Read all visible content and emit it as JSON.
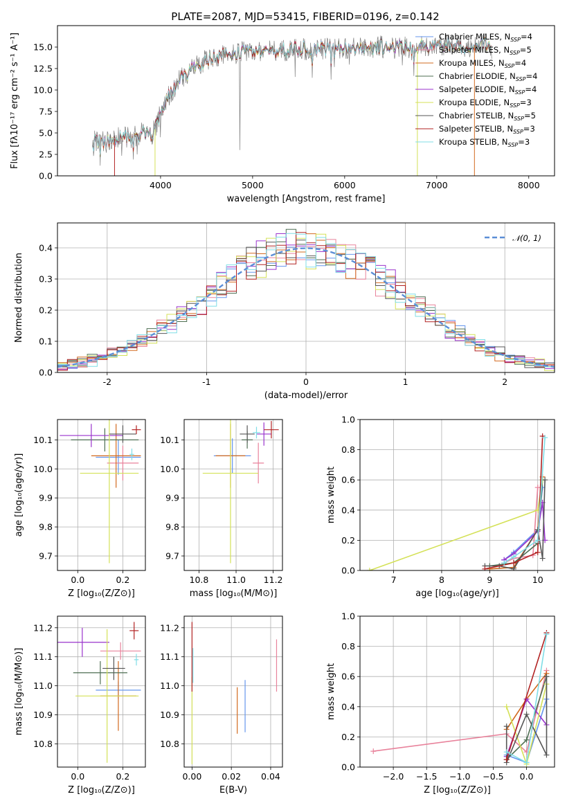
{
  "page": {
    "title": "PLATE=2087, MJD=53415, FIBERID=0196, z=0.142"
  },
  "models": [
    {
      "name": "Chabrier MILES",
      "nssp": "4",
      "color": "#6495ed"
    },
    {
      "name": "Salpeter MILES",
      "nssp": "5",
      "color": "#e8829b"
    },
    {
      "name": "Kroupa MILES",
      "nssp": "4",
      "color": "#d2691e"
    },
    {
      "name": "Chabrier ELODIE",
      "nssp": "4",
      "color": "#4d6e52"
    },
    {
      "name": "Salpeter ELODIE",
      "nssp": "4",
      "color": "#9932cc"
    },
    {
      "name": "Kroupa ELODIE",
      "nssp": "3",
      "color": "#d4e157"
    },
    {
      "name": "Chabrier STELIB",
      "nssp": "5",
      "color": "#555555"
    },
    {
      "name": "Salpeter STELIB",
      "nssp": "3",
      "color": "#b22222"
    },
    {
      "name": "Kroupa STELIB",
      "nssp": "3",
      "color": "#7fdde6"
    }
  ],
  "chart_data": [
    {
      "id": "spectrum",
      "type": "line",
      "title": "PLATE=2087, MJD=53415, FIBERID=0196, z=0.142",
      "xlabel": "wavelength [Angstrom, rest frame]",
      "ylabel": "Flux [fλ10⁻¹⁷ erg cm⁻² s⁻¹ A⁻¹]",
      "xlim": [
        2880,
        8280
      ],
      "ylim": [
        0,
        17.5
      ],
      "xticks": [
        4000,
        5000,
        6000,
        7000,
        8000
      ],
      "yticks": [
        "0.0",
        "2.5",
        "5.0",
        "7.5",
        "10.0",
        "12.5",
        "15.0"
      ],
      "legend_position": "upper right",
      "continuum": {
        "x": [
          3260,
          3400,
          3500,
          3600,
          3700,
          3800,
          3900,
          3950,
          4000,
          4100,
          4200,
          4300,
          4400,
          4500,
          4700,
          4900,
          5100,
          5300,
          5500,
          5700,
          5900,
          6100,
          6300,
          6500,
          6700,
          6900,
          7100,
          7300,
          7500,
          7600
        ],
        "y": [
          4.0,
          3.9,
          4.3,
          4.6,
          4.4,
          5.0,
          4.8,
          5.6,
          7.5,
          9.5,
          11.0,
          12.0,
          12.8,
          13.5,
          14.2,
          14.4,
          14.6,
          14.6,
          14.8,
          14.7,
          15.0,
          14.8,
          15.0,
          15.1,
          15.0,
          15.1,
          15.3,
          15.0,
          15.4,
          15.2
        ]
      }
    },
    {
      "id": "residuals",
      "type": "line",
      "xlabel": "(data-model)/error",
      "ylabel": "Normed distribution",
      "xlim": [
        -2.5,
        2.5
      ],
      "ylim": [
        0,
        0.48
      ],
      "xticks": [
        -2,
        -1,
        0,
        1,
        2
      ],
      "yticks": [
        "0.0",
        "0.1",
        "0.2",
        "0.3",
        "0.4"
      ],
      "legend": "𝒩(0, 1)",
      "legend_position": "upper right",
      "bin_width": 0.1,
      "grid": true
    },
    {
      "id": "age-vs-Z",
      "type": "scatter",
      "xlabel": "Z [log₁₀(Z/Z⊙)]",
      "ylabel": "age  [log₁₀(age/yr)]",
      "xlim": [
        -0.09,
        0.3
      ],
      "ylim": [
        9.65,
        10.17
      ],
      "xticks": [
        "0.0",
        "0.2"
      ],
      "yticks": [
        "9.7",
        "9.8",
        "9.9",
        "10.0",
        "10.1"
      ],
      "grid": true,
      "points": [
        {
          "x": 0.18,
          "xerr": 0.1,
          "y": 10.04,
          "yerr": 0.06,
          "color": "#6495ed"
        },
        {
          "x": 0.2,
          "xerr": 0.07,
          "y": 10.02,
          "yerr": 0.06,
          "color": "#e8829b"
        },
        {
          "x": 0.17,
          "xerr": 0.11,
          "y": 10.045,
          "yerr": 0.11,
          "color": "#d2691e"
        },
        {
          "x": 0.12,
          "xerr": 0.15,
          "y": 10.1,
          "yerr": 0.04,
          "color": "#4d6e52"
        },
        {
          "x": 0.06,
          "xerr": 0.14,
          "y": 10.115,
          "yerr": 0.04,
          "color": "#9932cc"
        },
        {
          "x": 0.14,
          "xerr": 0.13,
          "y": 9.985,
          "yerr": 0.31,
          "color": "#d4e157"
        },
        {
          "x": 0.2,
          "xerr": 0.06,
          "y": 10.12,
          "yerr": 0.03,
          "color": "#555555"
        },
        {
          "x": 0.26,
          "xerr": 0.02,
          "y": 10.135,
          "yerr": 0.015,
          "color": "#b22222"
        },
        {
          "x": 0.24,
          "xerr": 0.01,
          "y": 10.05,
          "yerr": 0.02,
          "color": "#7fdde6"
        }
      ]
    },
    {
      "id": "age-vs-mass",
      "type": "scatter",
      "xlabel": "mass [log₁₀(M/M⊙)]",
      "ylim": [
        9.65,
        10.17
      ],
      "xlim": [
        10.72,
        11.25
      ],
      "xticks": [
        "10.8",
        "11.0",
        "11.2"
      ],
      "yticks": [
        "9.7",
        "9.8",
        "9.9",
        "10.0",
        "10.1"
      ],
      "grid": true,
      "points": [
        {
          "x": 10.98,
          "xerr": 0.1,
          "y": 10.045,
          "yerr": 0.06,
          "color": "#6495ed"
        },
        {
          "x": 11.12,
          "xerr": 0.03,
          "y": 10.02,
          "yerr": 0.07,
          "color": "#e8829b"
        },
        {
          "x": 10.97,
          "xerr": 0.08,
          "y": 10.045,
          "yerr": 0.11,
          "color": "#d2691e"
        },
        {
          "x": 11.06,
          "xerr": 0.03,
          "y": 10.1,
          "yerr": 0.03,
          "color": "#4d6e52"
        },
        {
          "x": 11.15,
          "xerr": 0.04,
          "y": 10.12,
          "yerr": 0.04,
          "color": "#9932cc"
        },
        {
          "x": 10.97,
          "xerr": 0.15,
          "y": 9.985,
          "yerr": 0.31,
          "color": "#d4e157"
        },
        {
          "x": 11.06,
          "xerr": 0.04,
          "y": 10.12,
          "yerr": 0.03,
          "color": "#555555"
        },
        {
          "x": 11.19,
          "xerr": 0.04,
          "y": 10.135,
          "yerr": 0.03,
          "color": "#b22222"
        },
        {
          "x": 11.11,
          "xerr": 0.02,
          "y": 10.125,
          "yerr": 0.02,
          "color": "#7fdde6"
        }
      ]
    },
    {
      "id": "weight-vs-age",
      "type": "line",
      "xlabel": "age  [log₁₀(age/yr)]",
      "ylabel": "mass weight",
      "xlim": [
        6.3,
        10.35
      ],
      "ylim": [
        0,
        1
      ],
      "xticks": [
        "7",
        "8",
        "9",
        "10"
      ],
      "yticks": [
        "0.0",
        "0.2",
        "0.4",
        "0.6",
        "0.8",
        "1.0"
      ],
      "grid": true,
      "series": [
        {
          "color": "#6495ed",
          "x": [
            9.3,
            9.5,
            10.0,
            10.1
          ],
          "y": [
            0.07,
            0.12,
            0.27,
            0.55
          ]
        },
        {
          "color": "#e8829b",
          "x": [
            9.3,
            9.5,
            9.9,
            10.0
          ],
          "y": [
            0.05,
            0.08,
            0.1,
            0.55
          ]
        },
        {
          "color": "#d2691e",
          "x": [
            9.0,
            9.5,
            10.0,
            10.1
          ],
          "y": [
            0.01,
            0.02,
            0.27,
            0.62
          ]
        },
        {
          "color": "#4d6e52",
          "x": [
            9.0,
            9.5,
            10.0,
            10.1
          ],
          "y": [
            0.03,
            0.05,
            0.18,
            0.6
          ]
        },
        {
          "color": "#9932cc",
          "x": [
            9.3,
            9.5,
            10.0,
            10.1,
            10.15
          ],
          "y": [
            0.07,
            0.11,
            0.26,
            0.45,
            0.2
          ]
        },
        {
          "color": "#d4e157",
          "x": [
            6.5,
            10.0,
            10.1
          ],
          "y": [
            0.0,
            0.4,
            0.6
          ]
        },
        {
          "color": "#555555",
          "x": [
            8.9,
            9.2,
            9.5,
            10.0,
            10.1,
            10.15
          ],
          "y": [
            0.03,
            0.03,
            0.01,
            0.27,
            0.08,
            0.6
          ]
        },
        {
          "color": "#b22222",
          "x": [
            8.9,
            9.5,
            10.0,
            10.1
          ],
          "y": [
            0.01,
            0.05,
            0.12,
            0.89
          ]
        },
        {
          "color": "#7fdde6",
          "x": [
            9.3,
            9.5,
            10.0,
            10.15
          ],
          "y": [
            0.05,
            0.09,
            0.2,
            0.88
          ]
        }
      ]
    },
    {
      "id": "mass-vs-Z",
      "type": "scatter",
      "xlabel": "Z [log₁₀(Z/Z⊙)]",
      "ylabel": "mass [log₁₀(M/M⊙)]",
      "xlim": [
        -0.09,
        0.3
      ],
      "ylim": [
        10.72,
        11.24
      ],
      "xticks": [
        "0.0",
        "0.2"
      ],
      "yticks": [
        "10.8",
        "10.9",
        "11.0",
        "11.1",
        "11.2"
      ],
      "grid": true,
      "points": [
        {
          "x": 0.18,
          "xerr": 0.1,
          "y": 10.985,
          "yerr": 0.03,
          "color": "#6495ed"
        },
        {
          "x": 0.19,
          "xerr": 0.09,
          "y": 11.12,
          "yerr": 0.03,
          "color": "#e8829b"
        },
        {
          "x": 0.18,
          "xerr": 0.08,
          "y": 10.965,
          "yerr": 0.12,
          "color": "#d2691e"
        },
        {
          "x": 0.1,
          "xerr": 0.12,
          "y": 11.045,
          "yerr": 0.04,
          "color": "#4d6e52"
        },
        {
          "x": 0.02,
          "xerr": 0.12,
          "y": 11.15,
          "yerr": 0.05,
          "color": "#9932cc"
        },
        {
          "x": 0.13,
          "xerr": 0.14,
          "y": 10.965,
          "yerr": 0.23,
          "color": "#d4e157"
        },
        {
          "x": 0.16,
          "xerr": 0.05,
          "y": 11.06,
          "yerr": 0.04,
          "color": "#555555"
        },
        {
          "x": 0.25,
          "xerr": 0.02,
          "y": 11.19,
          "yerr": 0.03,
          "color": "#b22222"
        },
        {
          "x": 0.26,
          "xerr": 0.01,
          "y": 11.09,
          "yerr": 0.02,
          "color": "#7fdde6"
        }
      ]
    },
    {
      "id": "mass-vs-ebv",
      "type": "scatter",
      "xlabel": "E(B-V)",
      "xlim": [
        -0.004,
        0.046
      ],
      "ylim": [
        10.72,
        11.24
      ],
      "xticks": [
        "0.00",
        "0.02",
        "0.04"
      ],
      "yticks": [
        "10.8",
        "10.9",
        "11.0",
        "11.1",
        "11.2"
      ],
      "grid": true,
      "points": [
        {
          "x": 0.027,
          "y": 10.93,
          "yerr": 0.09,
          "color": "#6495ed"
        },
        {
          "x": 0.043,
          "y": 11.07,
          "yerr": 0.09,
          "color": "#e8829b"
        },
        {
          "x": 0.023,
          "y": 10.915,
          "yerr": 0.08,
          "color": "#d2691e"
        },
        {
          "x": 0.0,
          "y": 10.88,
          "yerr": 0.15,
          "color": "#d4e157"
        },
        {
          "x": 0.0,
          "y": 11.1,
          "yerr": 0.12,
          "color": "#b22222"
        },
        {
          "x": 0.0005,
          "y": 11.07,
          "yerr": 0.06,
          "color": "#7fdde6"
        }
      ]
    },
    {
      "id": "weight-vs-Z",
      "type": "line",
      "xlabel": "Z [log₁₀(Z/Z⊙)]",
      "ylabel": "mass weight",
      "xlim": [
        -2.5,
        0.42
      ],
      "ylim": [
        0,
        1
      ],
      "xticks": [
        "−2.0",
        "−1.5",
        "−1.0",
        "−0.5",
        "0.0"
      ],
      "yticks": [
        "0.0",
        "0.2",
        "0.4",
        "0.6",
        "0.8",
        "1.0"
      ],
      "grid": true,
      "series": [
        {
          "color": "#e8829b",
          "x": [
            -2.3,
            -0.3,
            0.0,
            0.3
          ],
          "y": [
            0.105,
            0.22,
            0.1,
            0.64
          ]
        },
        {
          "color": "#6495ed",
          "x": [
            -0.3,
            0.0,
            0.3
          ],
          "y": [
            0.08,
            0.03,
            0.45
          ]
        },
        {
          "color": "#d2691e",
          "x": [
            -0.3,
            0.0,
            0.3
          ],
          "y": [
            0.25,
            0.45,
            0.62
          ]
        },
        {
          "color": "#4d6e52",
          "x": [
            -0.3,
            0.0,
            0.3
          ],
          "y": [
            0.05,
            0.18,
            0.6
          ]
        },
        {
          "color": "#9932cc",
          "x": [
            -0.3,
            0.0,
            0.3
          ],
          "y": [
            0.07,
            0.45,
            0.28
          ]
        },
        {
          "color": "#d4e157",
          "x": [
            -0.3,
            0.0,
            0.3
          ],
          "y": [
            0.4,
            0.02,
            0.55
          ]
        },
        {
          "color": "#555555",
          "x": [
            -0.3,
            -0.3,
            0.0,
            0.3,
            0.3
          ],
          "y": [
            0.27,
            0.03,
            0.35,
            0.08,
            0.6
          ]
        },
        {
          "color": "#b22222",
          "x": [
            -0.3,
            0.3
          ],
          "y": [
            0.05,
            0.89
          ]
        },
        {
          "color": "#7fdde6",
          "x": [
            -0.3,
            0.0,
            0.3
          ],
          "y": [
            0.1,
            0.03,
            0.88
          ]
        }
      ]
    }
  ]
}
